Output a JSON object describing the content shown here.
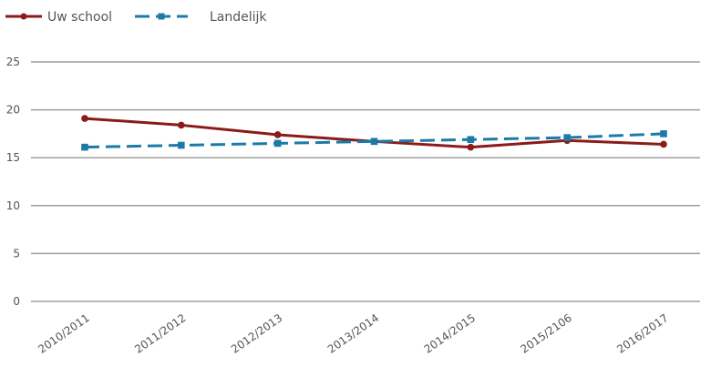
{
  "chart_data": {
    "type": "line",
    "categories": [
      "2010/2011",
      "2011/2012",
      "2012/2013",
      "2013/2014",
      "2014/2015",
      "2015/2106",
      "2016/2017"
    ],
    "series": [
      {
        "name": "Uw school",
        "values": [
          19.1,
          18.4,
          17.4,
          16.7,
          16.1,
          16.8,
          16.4
        ],
        "color": "#8b1a1a",
        "line_style": "solid",
        "marker": "circle"
      },
      {
        "name": "Landelijk",
        "values": [
          16.1,
          16.3,
          16.5,
          16.7,
          16.9,
          17.1,
          17.5
        ],
        "color": "#1a7ba8",
        "line_style": "dashed",
        "marker": "square"
      }
    ],
    "yticks": [
      0,
      5,
      10,
      15,
      20,
      25
    ],
    "ylim": [
      0,
      25
    ],
    "grid": "horizontal",
    "legend": "top-left",
    "title": "",
    "xlabel": "",
    "ylabel": ""
  }
}
